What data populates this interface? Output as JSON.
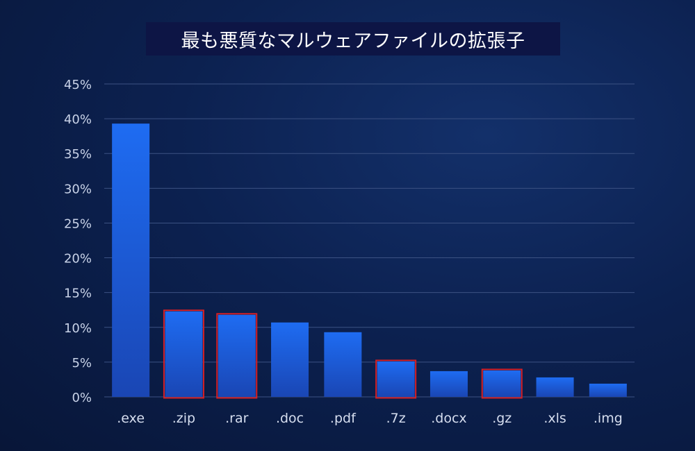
{
  "chart_data": {
    "type": "bar",
    "title": "最も悪質なマルウェアファイルの拡張子",
    "xlabel": "",
    "ylabel": "",
    "categories": [
      ".exe",
      ".zip",
      ".rar",
      ".doc",
      ".pdf",
      ".7z",
      ".docx",
      ".gz",
      ".xls",
      ".img"
    ],
    "values": [
      39.3,
      12.3,
      11.8,
      10.7,
      9.3,
      5.1,
      3.7,
      3.8,
      2.8,
      1.9
    ],
    "highlighted": [
      ".zip",
      ".rar",
      ".7z",
      ".gz"
    ],
    "ylim": [
      0,
      45
    ],
    "yticks": [
      "0%",
      "5%",
      "10%",
      "15%",
      "20%",
      "25%",
      "30%",
      "35%",
      "40%",
      "45%"
    ],
    "grid": true,
    "colors": {
      "bar_top": "#1e6cf2",
      "bar_bottom": "#1a46b4",
      "highlight_border": "#d41f26"
    }
  }
}
